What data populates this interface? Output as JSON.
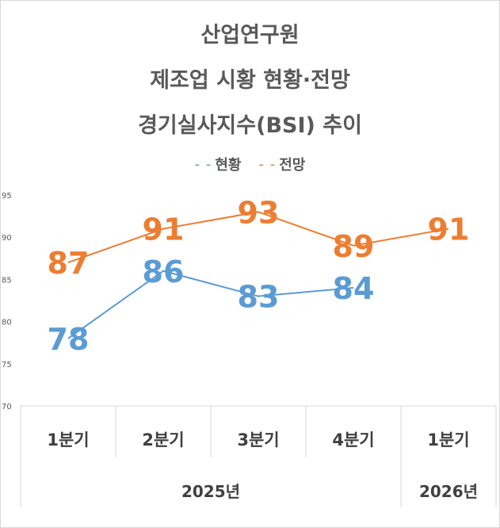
{
  "chart_data": {
    "type": "line",
    "title_lines": [
      "산업연구원",
      "제조업 시황 현황·전망",
      "경기실사지수(BSI) 추이"
    ],
    "legend_position": "top",
    "ylim": [
      70,
      95
    ],
    "yticks": [
      "70",
      "75",
      "80",
      "85",
      "90",
      "95"
    ],
    "categories": [
      "1분기",
      "2분기",
      "3분기",
      "4분기",
      "1분기"
    ],
    "groups": [
      {
        "label": "2025년",
        "span": 4
      },
      {
        "label": "2026년",
        "span": 1
      }
    ],
    "series": [
      {
        "name": "현황",
        "color": "#5b9bd5",
        "values": [
          78,
          86,
          83,
          84,
          null
        ]
      },
      {
        "name": "전망",
        "color": "#ed7d31",
        "values": [
          87,
          91,
          93,
          89,
          91
        ]
      }
    ],
    "grid": false
  }
}
